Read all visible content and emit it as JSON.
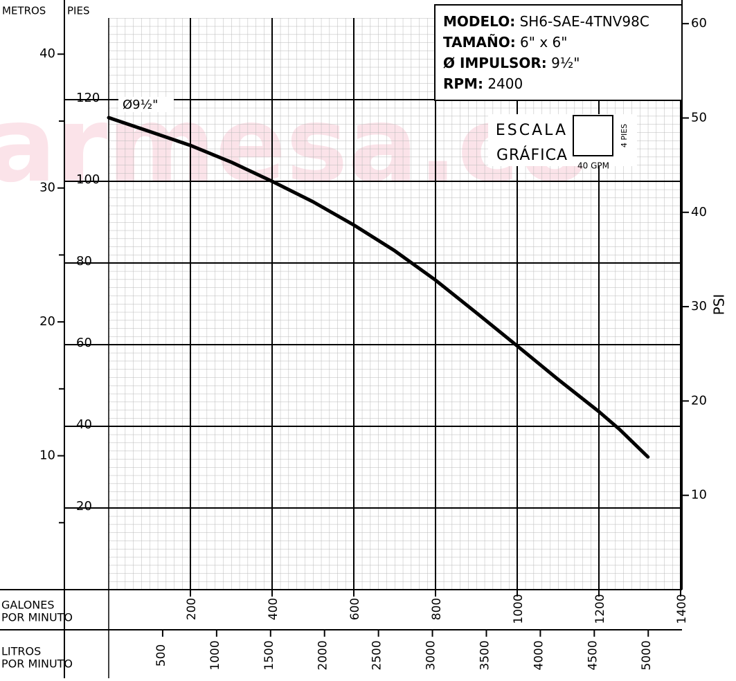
{
  "chart_data": {
    "type": "line",
    "x": [
      0,
      100,
      200,
      300,
      400,
      500,
      600,
      700,
      800,
      900,
      1000,
      1100,
      1200,
      1250,
      1320
    ],
    "series": [
      {
        "name": "Ø9½\"",
        "color": "#000000",
        "values": [
          115.6,
          112.2,
          108.8,
          104.7,
          100,
          95,
          89.3,
          83,
          75.8,
          67.8,
          59.7,
          51.5,
          43.6,
          39.3,
          32.5
        ]
      }
    ],
    "xlabel": [
      "GALONES",
      "POR MINUTO"
    ],
    "xlim": [
      0,
      1400
    ],
    "xticks": [
      200,
      400,
      600,
      800,
      1000,
      1200,
      1400
    ],
    "ylabel": "PIES",
    "ylim": [
      0,
      140
    ],
    "yticks": [
      20,
      40,
      60,
      80,
      100,
      120
    ],
    "y2label": "PSI",
    "y2lim": [
      0,
      60.6
    ],
    "y2ticks": [
      10,
      20,
      30,
      40,
      50,
      60
    ],
    "meters_axis": {
      "label": "METROS",
      "lim": [
        0,
        42.7
      ],
      "ticks": [
        10,
        20,
        30,
        40
      ],
      "minor_ticks": [
        5,
        15,
        25,
        35
      ]
    },
    "lpm_axis": {
      "label": [
        "LITROS",
        "POR MINUTO"
      ],
      "lim": [
        0,
        5300
      ],
      "ticks": [
        500,
        1000,
        1500,
        2000,
        2500,
        3000,
        3500,
        4000,
        4500,
        5000
      ]
    },
    "grid": true,
    "info": {
      "modelo_label": "MODELO:",
      "modelo": "SH6-SAE-4TNV98C",
      "tamano_label": "TAMAÑO:",
      "tamano": "6\" x 6\"",
      "impulsor_label": "Ø IMPULSOR:",
      "impulsor": "9½\"",
      "rpm_label": "RPM:",
      "rpm": "2400"
    },
    "scale": {
      "title": [
        "ESCALA",
        "GRÁFICA"
      ],
      "height": "4 PIES",
      "width": "40 GPM"
    },
    "watermark": "armesa.co"
  }
}
